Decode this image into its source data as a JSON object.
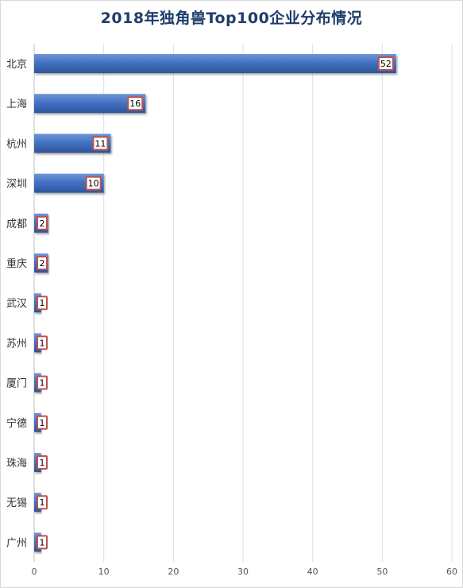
{
  "chart_data": {
    "type": "bar",
    "orientation": "horizontal",
    "title": "2018年独角兽Top100企业分布情况",
    "categories": [
      "北京",
      "上海",
      "杭州",
      "深圳",
      "成都",
      "重庆",
      "武汉",
      "苏州",
      "厦门",
      "宁德",
      "珠海",
      "无锡",
      "广州"
    ],
    "values": [
      52,
      16,
      11,
      10,
      2,
      2,
      1,
      1,
      1,
      1,
      1,
      1,
      1
    ],
    "xlim": [
      0,
      60
    ],
    "xticks": [
      0,
      10,
      20,
      30,
      40,
      50,
      60
    ],
    "xlabel": "",
    "ylabel": "",
    "grid": "vertical",
    "legend": "none",
    "colors": {
      "bar": "#4472c4",
      "bar_dark": "#2e5597",
      "bar_light": "#6f95d8",
      "label_border": "#c0504d",
      "grid": "#d6e0ee",
      "title": "#1f3d6b"
    }
  }
}
